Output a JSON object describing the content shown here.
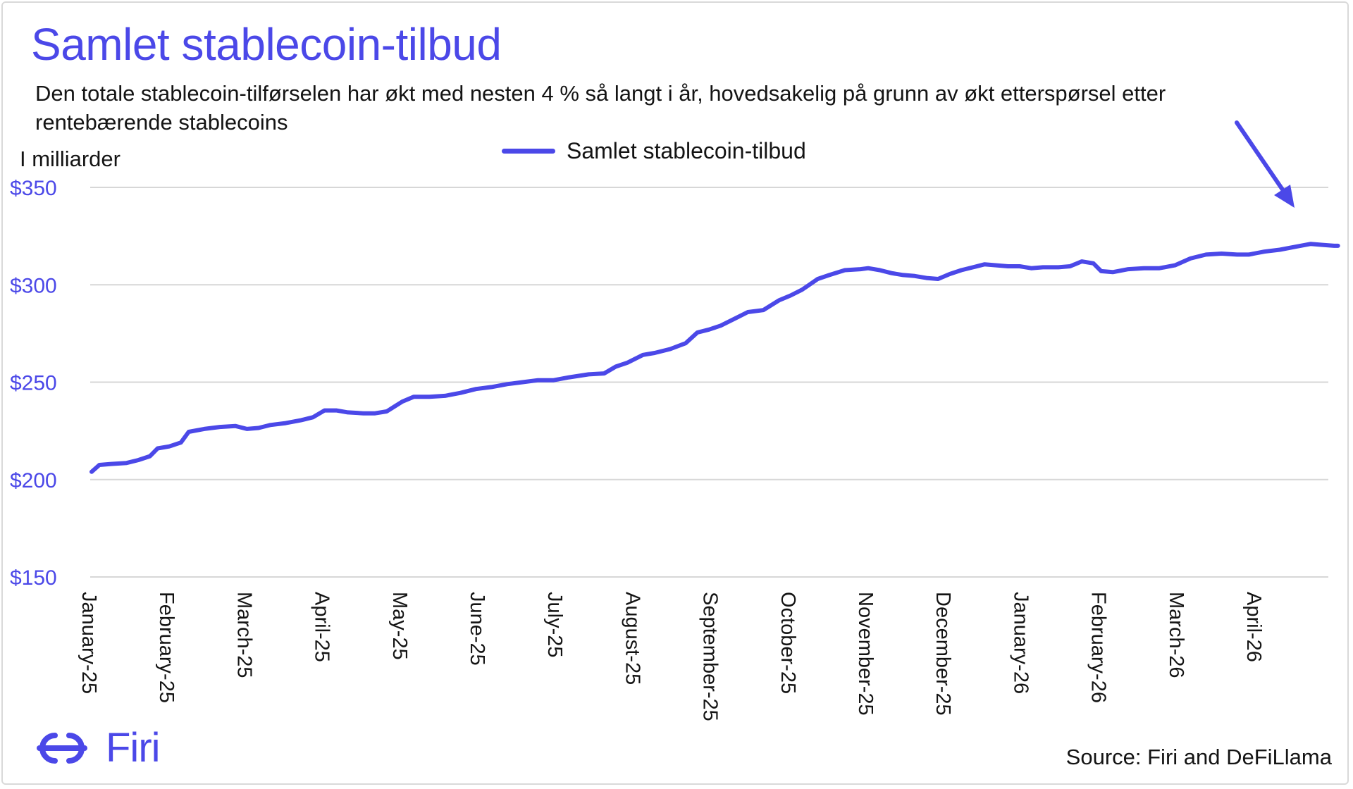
{
  "header": {
    "title": "Samlet stablecoin-tilbud",
    "subtitle": "Den totale stablecoin-tilførselen har økt med nesten 4 % så langt i år, hovedsakelig på grunn av økt etterspørsel etter rentebærende stablecoins",
    "unit_label": "I milliarder"
  },
  "footer": {
    "source": "Source: Firi and DeFiLlama",
    "logo_text": "Firi",
    "logo_icon": "firi-logo-icon"
  },
  "colors": {
    "accent": "#4b48e8",
    "grid": "#d7d7d7",
    "text": "#141414"
  },
  "chart_data": {
    "type": "line",
    "title": "Samlet stablecoin-tilbud",
    "ylabel": "I milliarder",
    "ylim": [
      150,
      350
    ],
    "yticks": [
      150,
      200,
      250,
      300,
      350
    ],
    "ytick_labels": [
      "$150",
      "$200",
      "$250",
      "$300",
      "$350"
    ],
    "grid": true,
    "legend_position": "top-center",
    "annotation": "arrow pointing to latest value",
    "x_tick_labels": [
      "January-25",
      "February-25",
      "March-25",
      "April-25",
      "May-25",
      "June-25",
      "July-25",
      "August-25",
      "September-25",
      "October-25",
      "November-25",
      "December-25",
      "January-26",
      "February-26",
      "March-26",
      "April-26"
    ],
    "series": [
      {
        "name": "Samlet stablecoin-tilbud",
        "color": "#4b48e8",
        "points": [
          [
            0.0,
            204
          ],
          [
            0.1,
            207.5
          ],
          [
            0.25,
            208
          ],
          [
            0.45,
            208.5
          ],
          [
            0.6,
            210
          ],
          [
            0.75,
            212
          ],
          [
            0.85,
            216
          ],
          [
            1.0,
            217
          ],
          [
            1.15,
            219
          ],
          [
            1.25,
            224.5
          ],
          [
            1.45,
            226
          ],
          [
            1.65,
            227
          ],
          [
            1.85,
            227.5
          ],
          [
            2.0,
            226
          ],
          [
            2.15,
            226.5
          ],
          [
            2.3,
            228
          ],
          [
            2.5,
            229
          ],
          [
            2.7,
            230.5
          ],
          [
            2.85,
            232
          ],
          [
            3.0,
            235.5
          ],
          [
            3.15,
            235.5
          ],
          [
            3.3,
            234.5
          ],
          [
            3.5,
            234
          ],
          [
            3.65,
            234
          ],
          [
            3.8,
            235
          ],
          [
            3.9,
            237.5
          ],
          [
            4.0,
            240
          ],
          [
            4.15,
            242.5
          ],
          [
            4.35,
            242.5
          ],
          [
            4.55,
            243
          ],
          [
            4.75,
            244.5
          ],
          [
            4.95,
            246.5
          ],
          [
            5.15,
            247.5
          ],
          [
            5.35,
            249
          ],
          [
            5.55,
            250
          ],
          [
            5.75,
            251
          ],
          [
            5.95,
            251
          ],
          [
            6.15,
            252.5
          ],
          [
            6.4,
            254
          ],
          [
            6.6,
            254.5
          ],
          [
            6.75,
            258
          ],
          [
            6.9,
            260
          ],
          [
            7.1,
            264
          ],
          [
            7.25,
            265
          ],
          [
            7.45,
            267
          ],
          [
            7.65,
            270
          ],
          [
            7.8,
            275.5
          ],
          [
            7.95,
            277
          ],
          [
            8.1,
            279
          ],
          [
            8.3,
            283
          ],
          [
            8.45,
            286
          ],
          [
            8.65,
            287
          ],
          [
            8.85,
            292
          ],
          [
            9.0,
            294.5
          ],
          [
            9.15,
            297.5
          ],
          [
            9.35,
            303
          ],
          [
            9.5,
            305
          ],
          [
            9.7,
            307.5
          ],
          [
            9.9,
            308
          ],
          [
            10.0,
            308.5
          ],
          [
            10.15,
            307.5
          ],
          [
            10.3,
            306
          ],
          [
            10.45,
            305
          ],
          [
            10.6,
            304.5
          ],
          [
            10.75,
            303.5
          ],
          [
            10.9,
            303
          ],
          [
            11.05,
            305.5
          ],
          [
            11.2,
            307.5
          ],
          [
            11.35,
            309
          ],
          [
            11.5,
            310.5
          ],
          [
            11.65,
            310
          ],
          [
            11.8,
            309.5
          ],
          [
            11.95,
            309.5
          ],
          [
            12.1,
            308.5
          ],
          [
            12.25,
            309
          ],
          [
            12.45,
            309
          ],
          [
            12.6,
            309.5
          ],
          [
            12.75,
            312
          ],
          [
            12.9,
            311
          ],
          [
            13.0,
            307
          ],
          [
            13.15,
            306.5
          ],
          [
            13.35,
            308
          ],
          [
            13.55,
            308.5
          ],
          [
            13.75,
            308.5
          ],
          [
            13.95,
            310
          ],
          [
            14.15,
            313.5
          ],
          [
            14.35,
            315.5
          ],
          [
            14.55,
            316
          ],
          [
            14.75,
            315.5
          ],
          [
            14.9,
            315.5
          ],
          [
            15.1,
            317
          ],
          [
            15.3,
            318
          ],
          [
            15.5,
            319.5
          ],
          [
            15.7,
            321
          ],
          [
            15.85,
            320.5
          ],
          [
            16.0,
            320
          ],
          [
            16.05,
            320
          ]
        ]
      }
    ]
  }
}
